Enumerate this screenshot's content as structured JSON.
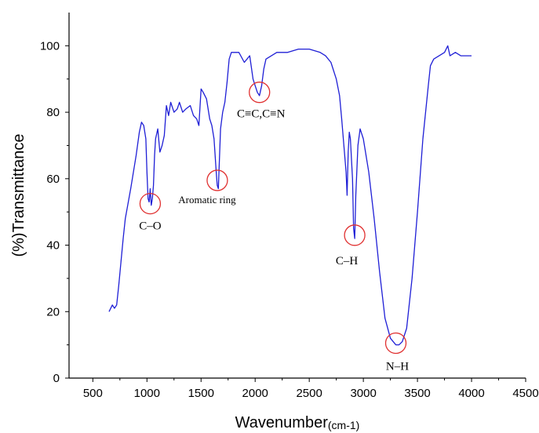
{
  "chart_data": {
    "type": "line",
    "title": "",
    "xlabel": "Wavenumber",
    "xlabel_unit": "(cm-1)",
    "ylabel": "(%)Transmittance",
    "xlim": [
      280,
      4500
    ],
    "ylim": [
      0,
      110
    ],
    "xticks": [
      500,
      1000,
      1500,
      2000,
      2500,
      3000,
      3500,
      4000,
      4500
    ],
    "yticks": [
      0,
      20,
      40,
      60,
      80,
      100
    ],
    "grid": false,
    "legend": "none",
    "series": [
      {
        "color": "#1f1fd6",
        "x": [
          650,
          680,
          700,
          720,
          740,
          760,
          780,
          800,
          850,
          900,
          930,
          950,
          970,
          990,
          1000,
          1010,
          1020,
          1030,
          1040,
          1050,
          1060,
          1070,
          1080,
          1100,
          1120,
          1140,
          1160,
          1180,
          1200,
          1220,
          1250,
          1280,
          1300,
          1330,
          1360,
          1400,
          1430,
          1460,
          1480,
          1500,
          1520,
          1550,
          1580,
          1600,
          1620,
          1640,
          1650,
          1660,
          1680,
          1700,
          1720,
          1740,
          1760,
          1780,
          1800,
          1850,
          1900,
          1950,
          1980,
          2000,
          2020,
          2040,
          2060,
          2080,
          2100,
          2150,
          2200,
          2300,
          2400,
          2500,
          2600,
          2650,
          2700,
          2750,
          2780,
          2800,
          2820,
          2840,
          2850,
          2860,
          2870,
          2880,
          2900,
          2910,
          2920,
          2930,
          2950,
          2970,
          3000,
          3050,
          3100,
          3150,
          3200,
          3250,
          3300,
          3330,
          3360,
          3400,
          3450,
          3500,
          3550,
          3600,
          3620,
          3650,
          3700,
          3750,
          3780,
          3800,
          3850,
          3900,
          3950,
          4000
        ],
        "y": [
          20,
          22,
          21,
          22,
          28,
          35,
          42,
          48,
          57,
          67,
          74,
          77,
          76,
          72,
          62,
          54,
          53,
          57,
          52,
          54,
          58,
          67,
          72,
          75,
          68,
          70,
          73,
          82,
          79,
          83,
          80,
          81,
          83,
          80,
          81,
          82,
          79,
          78,
          76,
          87,
          86,
          84,
          78,
          76,
          72,
          62,
          58,
          57,
          75,
          80,
          83,
          89,
          96,
          98,
          98,
          98,
          95,
          97,
          90,
          88,
          86,
          85,
          88,
          93,
          96,
          97,
          98,
          98,
          99,
          99,
          98,
          97,
          95,
          90,
          85,
          78,
          70,
          62,
          55,
          68,
          74,
          72,
          60,
          45,
          42,
          55,
          70,
          75,
          72,
          62,
          48,
          32,
          18,
          12,
          10,
          10,
          11,
          15,
          30,
          50,
          72,
          88,
          94,
          96,
          97,
          98,
          100,
          97,
          98,
          97,
          97,
          97
        ]
      }
    ],
    "annotations": [
      {
        "text": "C–O",
        "x": 1030,
        "y": 52.5
      },
      {
        "text": "Aromatic ring",
        "x": 1650,
        "y": 59.5
      },
      {
        "text": "C≡C,C≡N",
        "x": 2040,
        "y": 86
      },
      {
        "text": "C–H",
        "x": 2920,
        "y": 43
      },
      {
        "text": "N–H",
        "x": 3300,
        "y": 10.5
      }
    ],
    "annotation_color": "#e03030"
  }
}
